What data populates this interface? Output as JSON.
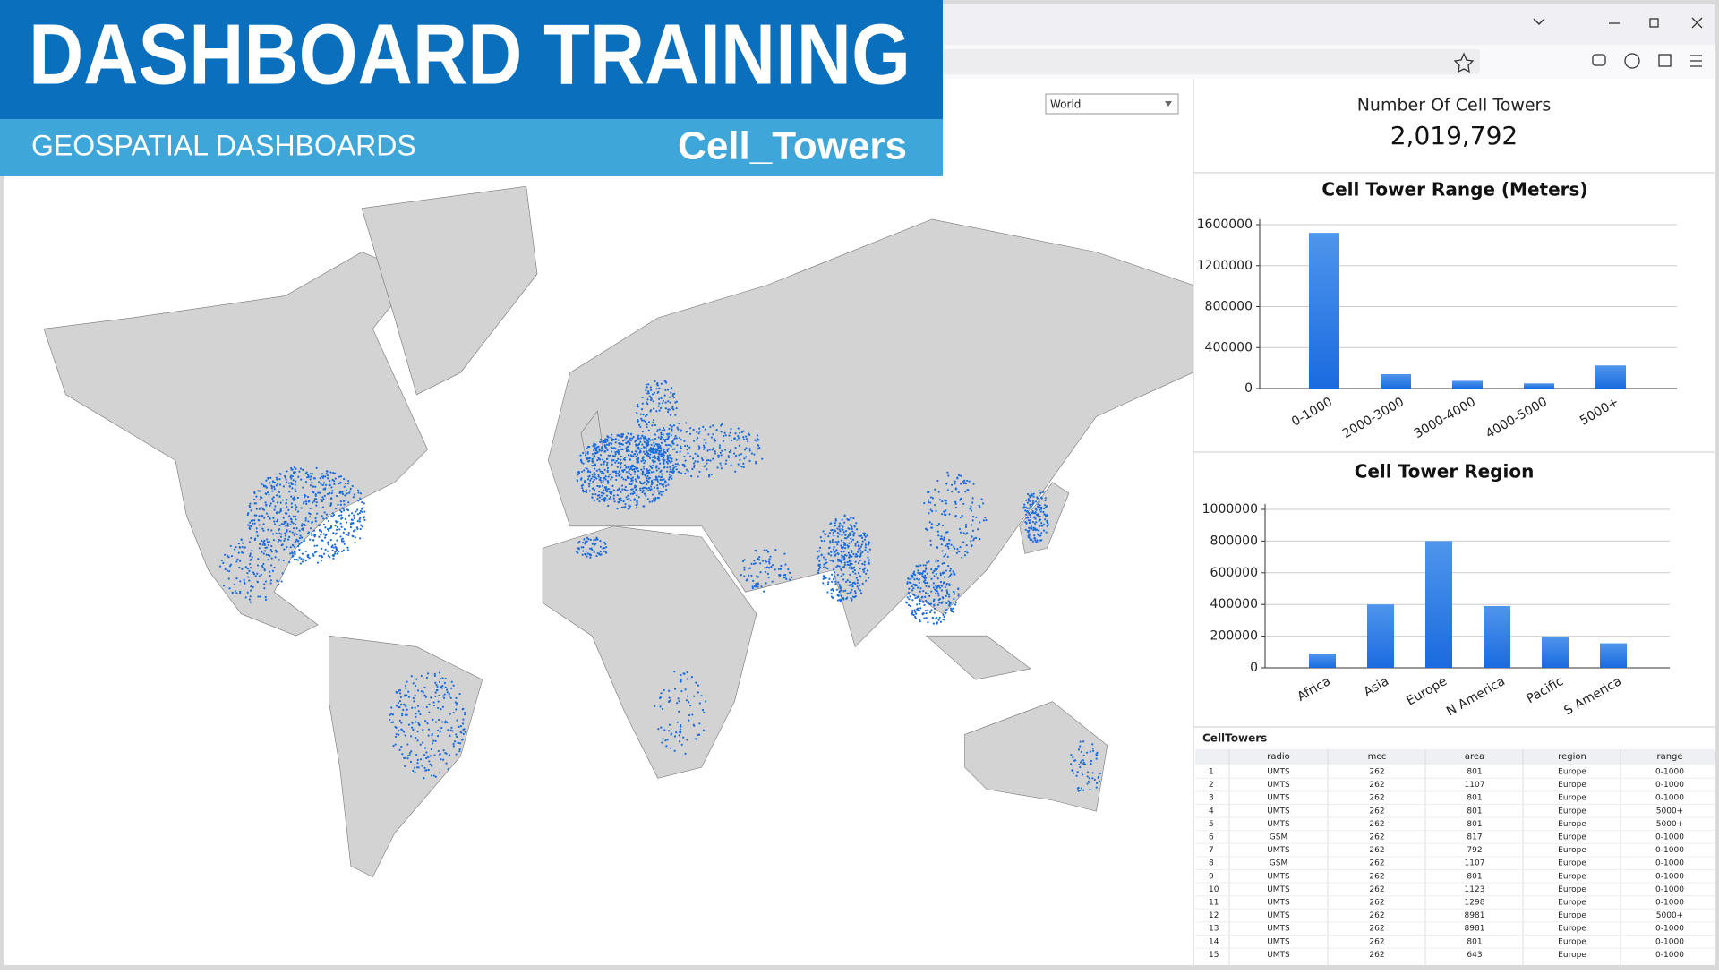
{
  "banner": {
    "title": "DASHBOARD TRAINING",
    "subtitle": "GEOSPATIAL DASHBOARDS",
    "dashboard": "Cell_Towers"
  },
  "filter": {
    "selected": "World"
  },
  "kpi": {
    "title": "Number Of Cell Towers",
    "value": "2,019,792"
  },
  "range_chart": {
    "type": "bar",
    "title": "Cell Tower Range (Meters)",
    "categories": [
      "0-1000",
      "2000-3000",
      "3000-4000",
      "4000-5000",
      "5000+"
    ],
    "values": [
      1520000,
      140000,
      75000,
      50000,
      225000
    ],
    "ylim": [
      0,
      1600000
    ],
    "yticks": [
      0,
      400000,
      800000,
      1200000,
      1600000
    ],
    "grid": true
  },
  "region_chart": {
    "type": "bar",
    "title": "Cell Tower Region",
    "categories": [
      "Africa",
      "Asia",
      "Europe",
      "N America",
      "Pacific",
      "S America"
    ],
    "values": [
      90000,
      400000,
      800000,
      390000,
      195000,
      155000
    ],
    "ylim": [
      0,
      1000000
    ],
    "yticks": [
      0,
      200000,
      400000,
      600000,
      800000,
      1000000
    ],
    "grid": true
  },
  "table": {
    "title": "CellTowers",
    "columns": [
      "radio",
      "mcc",
      "area",
      "region",
      "range"
    ],
    "rows": [
      [
        1,
        "UMTS",
        262,
        801,
        "Europe",
        "0-1000"
      ],
      [
        2,
        "UMTS",
        262,
        1107,
        "Europe",
        "0-1000"
      ],
      [
        3,
        "UMTS",
        262,
        801,
        "Europe",
        "0-1000"
      ],
      [
        4,
        "UMTS",
        262,
        801,
        "Europe",
        "5000+"
      ],
      [
        5,
        "UMTS",
        262,
        801,
        "Europe",
        "5000+"
      ],
      [
        6,
        "GSM",
        262,
        817,
        "Europe",
        "0-1000"
      ],
      [
        7,
        "UMTS",
        262,
        792,
        "Europe",
        "0-1000"
      ],
      [
        8,
        "GSM",
        262,
        1107,
        "Europe",
        "0-1000"
      ],
      [
        9,
        "UMTS",
        262,
        801,
        "Europe",
        "0-1000"
      ],
      [
        10,
        "UMTS",
        262,
        1123,
        "Europe",
        "0-1000"
      ],
      [
        11,
        "UMTS",
        262,
        1298,
        "Europe",
        "0-1000"
      ],
      [
        12,
        "UMTS",
        262,
        8981,
        "Europe",
        "5000+"
      ],
      [
        13,
        "UMTS",
        262,
        8981,
        "Europe",
        "0-1000"
      ],
      [
        14,
        "UMTS",
        262,
        801,
        "Europe",
        "0-1000"
      ],
      [
        15,
        "UMTS",
        262,
        643,
        "Europe",
        "0-1000"
      ]
    ]
  }
}
